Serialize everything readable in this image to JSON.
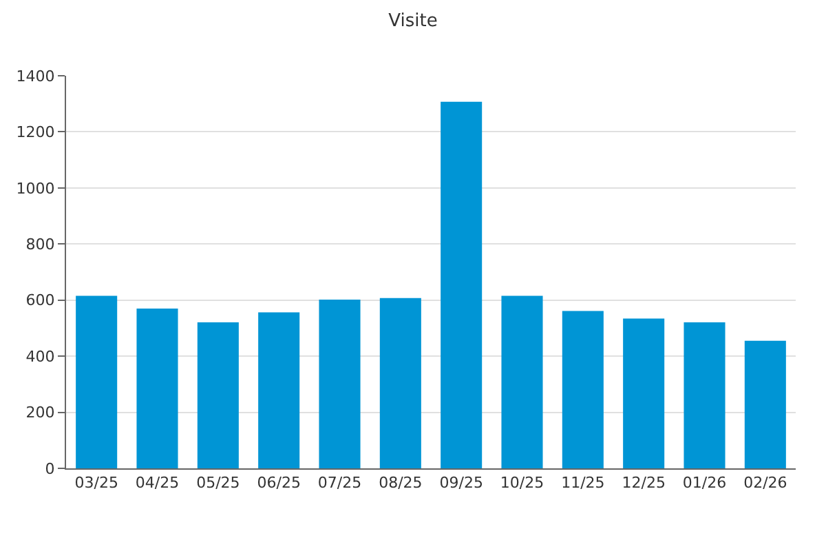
{
  "chart_data": {
    "type": "bar",
    "title": "Visite",
    "categories": [
      "03/25",
      "04/25",
      "05/25",
      "06/25",
      "07/25",
      "08/25",
      "09/25",
      "10/25",
      "11/25",
      "12/25",
      "01/26",
      "02/26"
    ],
    "values": [
      615,
      570,
      521,
      556,
      602,
      607,
      1307,
      615,
      561,
      534,
      521,
      455
    ],
    "color": "#0095d5",
    "ylim": [
      0,
      1400
    ],
    "yticks": [
      0,
      200,
      400,
      600,
      800,
      1000,
      1200,
      1400
    ],
    "grid": "y",
    "legend": false
  }
}
